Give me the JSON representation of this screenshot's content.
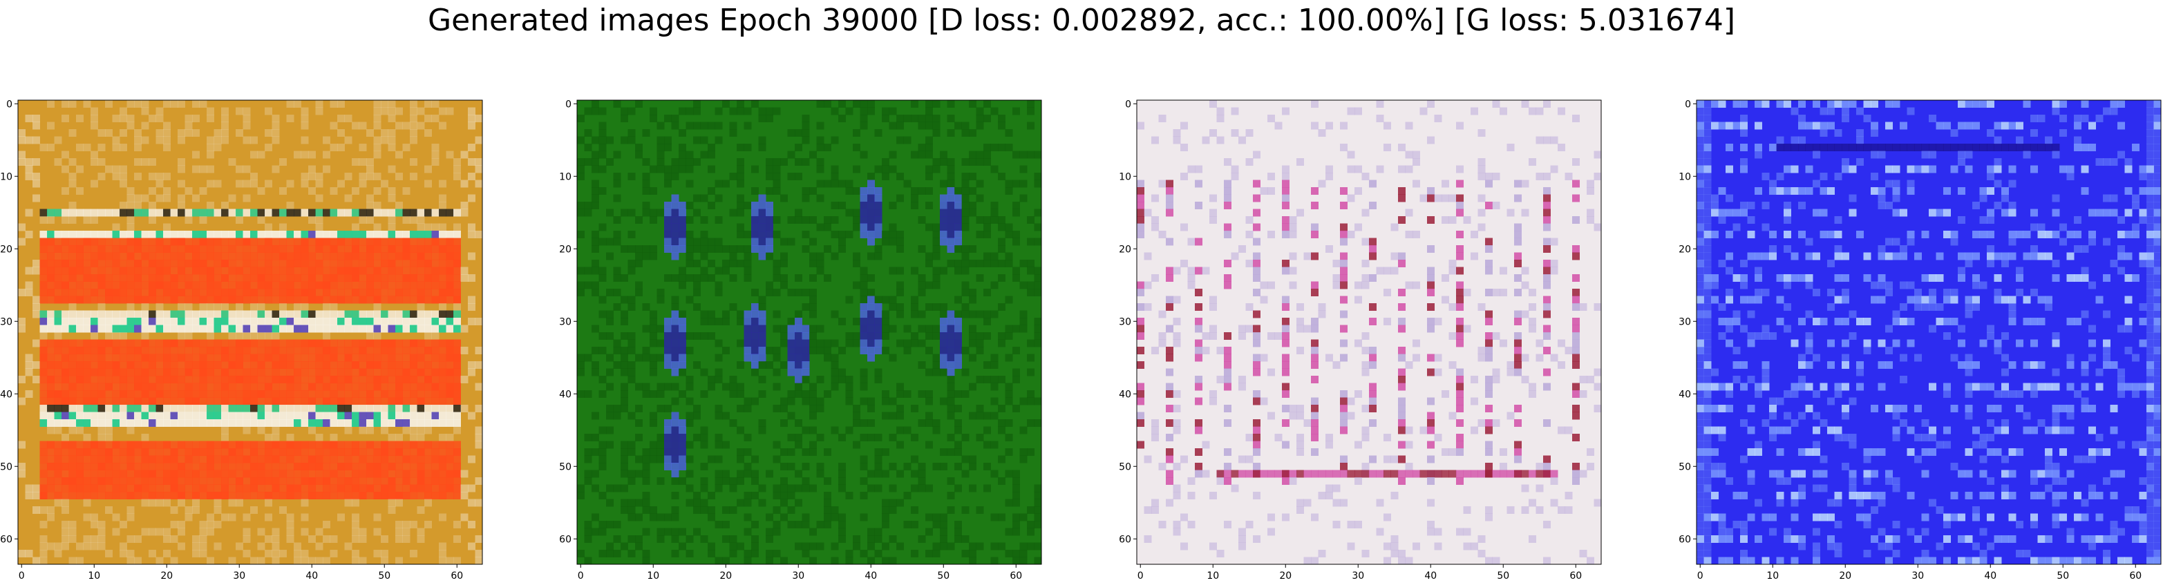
{
  "title": "Generated images Epoch 39000 [D loss: 0.002892, acc.: 100.00%] [G loss: 5.031674]",
  "x_ticks": [
    "0",
    "10",
    "20",
    "30",
    "40",
    "50",
    "60"
  ],
  "y_ticks": [
    "0",
    "10",
    "20",
    "30",
    "40",
    "50",
    "60"
  ],
  "axis_range": [
    0,
    63
  ],
  "panels": [
    {
      "name": "sample-1",
      "scheme": "orange_stripes",
      "colors": {
        "base": "#d49a2c",
        "stripe": "#ff4a1a",
        "band": "#f7f3e8",
        "accent1": "#1fd19a",
        "accent2": "#5a4cc8"
      }
    },
    {
      "name": "sample-2",
      "scheme": "green_spots",
      "colors": {
        "base": "#1d7a14",
        "dark": "#0f5a08",
        "spot": "#4f63e6",
        "spot_core": "#2a2a9a"
      }
    },
    {
      "name": "sample-3",
      "scheme": "white_dots",
      "colors": {
        "base": "#efe9ec",
        "dot1": "#d24fa8",
        "dot2": "#9b1e3a",
        "dot3": "#b9a8d9"
      }
    },
    {
      "name": "sample-4",
      "scheme": "blue_noise",
      "colors": {
        "base": "#2d2cf0",
        "light": "#7fa0ff",
        "bright": "#c8e8ff",
        "dark": "#1a1090"
      }
    }
  ]
}
